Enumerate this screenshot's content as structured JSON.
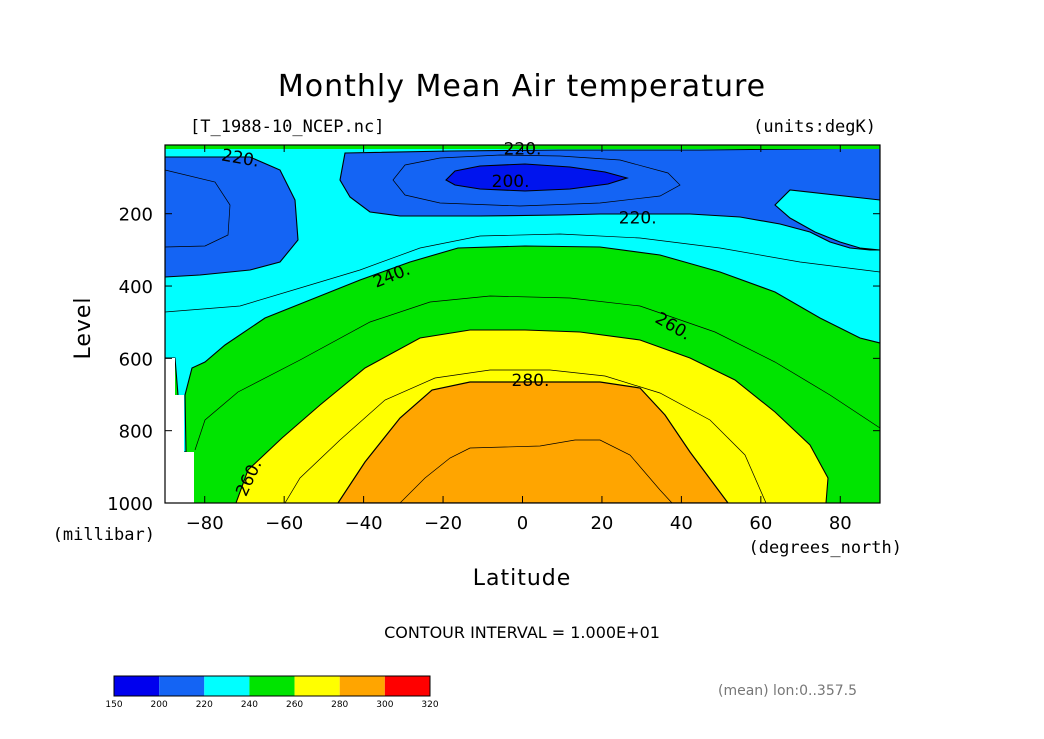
{
  "chart_data": {
    "type": "contour",
    "title": "Monthly Mean Air temperature",
    "file_label": "[T_1988-10_NCEP.nc]",
    "units_label": "(units:degK)",
    "xlabel": "Latitude",
    "x_units": "(degrees_north)",
    "ylabel": "Level",
    "y_units": "(millibar)",
    "xlim": [
      -90,
      90
    ],
    "ylim": [
      1000,
      10
    ],
    "x_ticks": [
      -80,
      -60,
      -40,
      -20,
      0,
      20,
      40,
      60,
      80
    ],
    "x_tick_labels": [
      "−80",
      "−60",
      "−40",
      "−20",
      "0",
      "20",
      "40",
      "60",
      "80"
    ],
    "y_ticks": [
      200,
      400,
      600,
      800,
      1000
    ],
    "y_tick_labels": [
      "200",
      "400",
      "600",
      "800",
      "1000"
    ],
    "contour_interval_text": "CONTOUR INTERVAL = 1.000E+01",
    "mean_note": "(mean) lon:0..357.5",
    "contour_labels": [
      {
        "text": "220.",
        "lat": -71,
        "level": 45
      },
      {
        "text": "220.",
        "lat": 0,
        "level": 20
      },
      {
        "text": "200.",
        "lat": -3,
        "level": 110
      },
      {
        "text": "220.",
        "lat": 29,
        "level": 210
      },
      {
        "text": "240.",
        "lat": -33,
        "level": 370
      },
      {
        "text": "260.",
        "lat": 38,
        "level": 510
      },
      {
        "text": "280.",
        "lat": 2,
        "level": 660
      },
      {
        "text": "260.",
        "lat": -69,
        "level": 930
      }
    ],
    "fill_bands": [
      {
        "range": [
          200,
          220
        ],
        "color": "#1464f4"
      },
      {
        "range": [
          150,
          200
        ],
        "color": "#0014ee"
      },
      {
        "range": [
          220,
          240
        ],
        "color": "#00ffff"
      },
      {
        "range": [
          240,
          260
        ],
        "color": "#00e400"
      },
      {
        "range": [
          260,
          280
        ],
        "color": "#ffff00"
      },
      {
        "range": [
          280,
          300
        ],
        "color": "#ffa500"
      }
    ],
    "colorbar": {
      "bounds": [
        "150",
        "200",
        "220",
        "240",
        "260",
        "280",
        "300",
        "320"
      ],
      "colors": [
        "#0000ee",
        "#1464f4",
        "#00ffff",
        "#00e400",
        "#ffff00",
        "#ffa500",
        "#ff0000"
      ]
    }
  }
}
